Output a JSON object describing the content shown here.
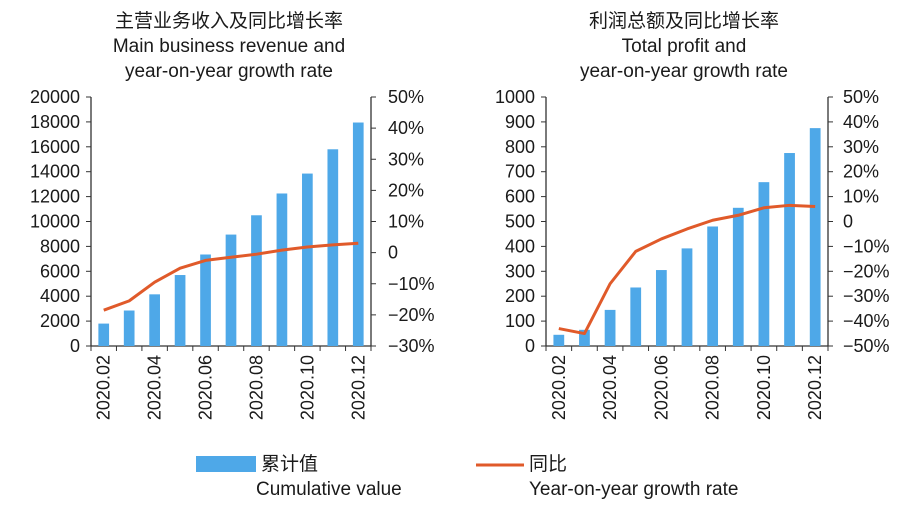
{
  "chart_data": [
    {
      "type": "bar+line",
      "title_cn": "主营业务收入及同比增长率",
      "title_en_1": "Main business revenue and",
      "title_en_2": "year-on-year growth rate",
      "categories": [
        "2020.02",
        "2020.03",
        "2020.04",
        "2020.05",
        "2020.06",
        "2020.07",
        "2020.08",
        "2020.09",
        "2020.10",
        "2020.11",
        "2020.12"
      ],
      "x_tick_labels": [
        "2020.02",
        "2020.04",
        "2020.06",
        "2020.08",
        "2020.10",
        "2020.12"
      ],
      "series": [
        {
          "name": "累计值",
          "axis": "left",
          "kind": "bar",
          "values": [
            1800,
            2850,
            4150,
            5700,
            7350,
            8950,
            10500,
            12250,
            13850,
            15800,
            17950
          ]
        },
        {
          "name": "同比",
          "axis": "right",
          "kind": "line",
          "values": [
            -18.5,
            -15.5,
            -9.5,
            -5.0,
            -2.5,
            -1.5,
            -0.5,
            0.8,
            1.8,
            2.5,
            3.0
          ]
        }
      ],
      "left_ylim": [
        0,
        20000
      ],
      "left_ticks": [
        "0",
        "2000",
        "4000",
        "6000",
        "8000",
        "10000",
        "12000",
        "14000",
        "16000",
        "18000",
        "20000"
      ],
      "right_ylim": [
        -30,
        50
      ],
      "right_ticks": [
        "−30%",
        "−20%",
        "−10%",
        "0",
        "10%",
        "20%",
        "30%",
        "40%",
        "50%"
      ]
    },
    {
      "type": "bar+line",
      "title_cn": "利润总额及同比增长率",
      "title_en_1": "Total profit and",
      "title_en_2": "year-on-year growth rate",
      "categories": [
        "2020.02",
        "2020.03",
        "2020.04",
        "2020.05",
        "2020.06",
        "2020.07",
        "2020.08",
        "2020.09",
        "2020.10",
        "2020.11",
        "2020.12"
      ],
      "x_tick_labels": [
        "2020.02",
        "2020.04",
        "2020.06",
        "2020.08",
        "2020.10",
        "2020.12"
      ],
      "series": [
        {
          "name": "累计值",
          "axis": "left",
          "kind": "bar",
          "values": [
            45,
            65,
            145,
            235,
            305,
            392,
            480,
            555,
            658,
            775,
            875
          ]
        },
        {
          "name": "同比",
          "axis": "right",
          "kind": "line",
          "values": [
            -43,
            -45,
            -25,
            -12,
            -7,
            -3,
            0.5,
            2.5,
            5.5,
            6.5,
            6.0
          ]
        }
      ],
      "left_ylim": [
        0,
        1000
      ],
      "left_ticks": [
        "0",
        "100",
        "200",
        "300",
        "400",
        "500",
        "600",
        "700",
        "800",
        "900",
        "1000"
      ],
      "right_ylim": [
        -50,
        50
      ],
      "right_ticks": [
        "−50%",
        "−40%",
        "−30%",
        "−20%",
        "−10%",
        "0",
        "10%",
        "20%",
        "30%",
        "40%",
        "50%"
      ]
    }
  ],
  "legend": {
    "bar_cn": "累计值",
    "bar_en": "Cumulative value",
    "line_cn": "同比",
    "line_en": "Year-on-year growth rate"
  },
  "colors": {
    "bar": "#4ea8e8",
    "line": "#e05a2a",
    "axis": "#333333"
  }
}
